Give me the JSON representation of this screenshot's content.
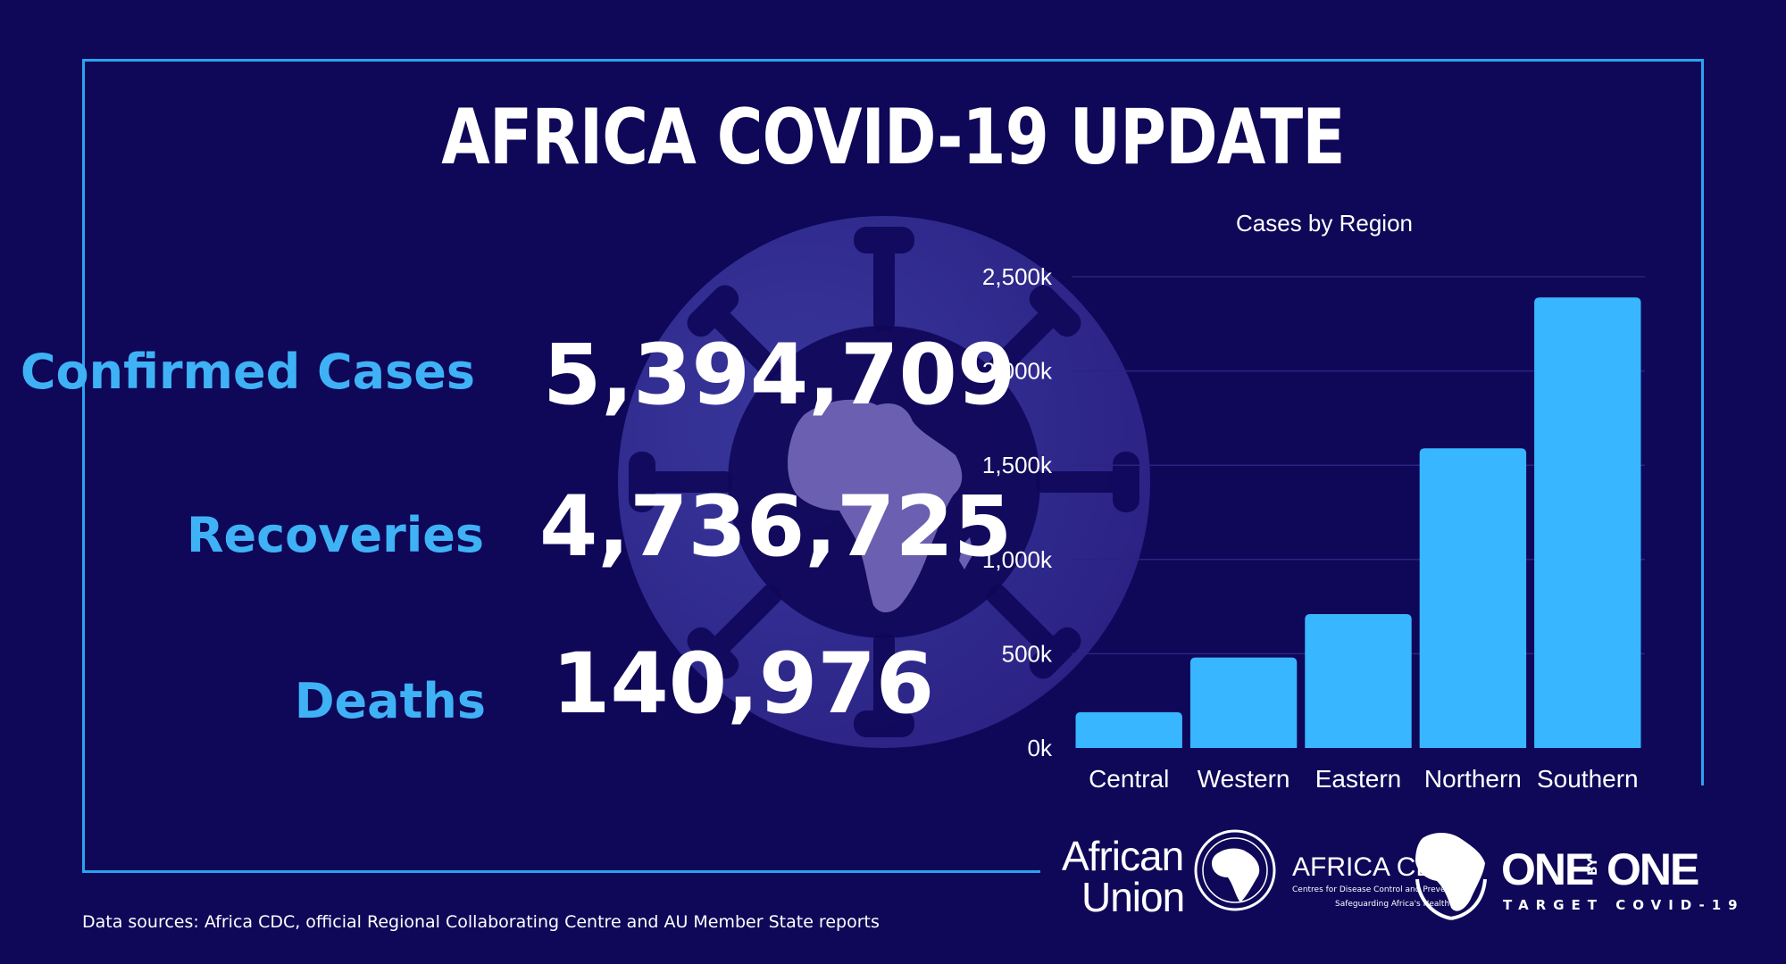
{
  "title": "AFRICA COVID-19 UPDATE",
  "stats": [
    {
      "label": "Confirmed Cases",
      "value": "5,394,709"
    },
    {
      "label": "Recoveries",
      "value": "4,736,725"
    },
    {
      "label": "Deaths",
      "value": "140,976"
    }
  ],
  "chart_data": {
    "type": "bar",
    "title": "Cases by Region",
    "xlabel": "",
    "ylabel": "",
    "categories": [
      "Central",
      "Western",
      "Eastern",
      "Northern",
      "Southern"
    ],
    "values": [
      190,
      480,
      710,
      1590,
      2390
    ],
    "ylim": [
      0,
      2500
    ],
    "yticks": [
      0,
      500,
      1000,
      1500,
      2000,
      2500
    ],
    "ytick_labels": [
      "0k",
      "500k",
      "1,000k",
      "1,500k",
      "2,000k",
      "2,500k"
    ],
    "bar_color": "#38b6ff",
    "grid": true
  },
  "footer": {
    "source": "Data sources: Africa CDC, official Regional Collaborating Centre and AU Member State reports"
  },
  "logos": {
    "au_line1": "African",
    "au_line2": "Union",
    "cdc_title": "AFRICA CDC",
    "cdc_sub": "Centres for Disease Control and Prevention",
    "cdc_tag": "Safeguarding Africa's Health",
    "obo_one1": "ONE",
    "obo_by": "BY",
    "obo_one2": "ONE",
    "obo_tag": "TARGET COVID-19"
  },
  "colors": {
    "background": "#0f0758",
    "accent": "#38b6ff",
    "label": "#3fb2f6"
  }
}
